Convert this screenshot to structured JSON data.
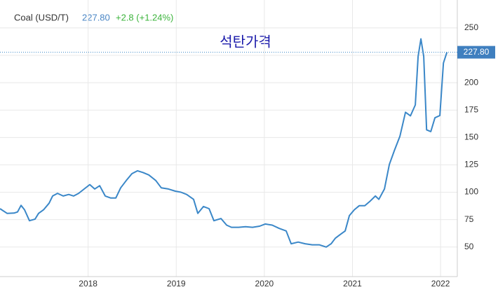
{
  "header": {
    "name": "Coal (USD/T)",
    "price": "227.80",
    "change": "+2.8 (+1.24%)"
  },
  "chart_data": {
    "type": "line",
    "title": "석탄가격",
    "x": [
      2017.0,
      2017.08,
      2017.159,
      2017.199,
      2017.239,
      2017.279,
      2017.334,
      2017.398,
      2017.438,
      2017.494,
      2017.557,
      2017.597,
      2017.653,
      2017.717,
      2017.78,
      2017.836,
      2017.892,
      2017.955,
      2018.019,
      2018.075,
      2018.131,
      2018.194,
      2018.258,
      2018.314,
      2018.369,
      2018.433,
      2018.497,
      2018.561,
      2018.624,
      2018.688,
      2018.768,
      2018.831,
      2018.911,
      2018.99,
      2019.054,
      2019.118,
      2019.197,
      2019.245,
      2019.309,
      2019.373,
      2019.428,
      2019.508,
      2019.572,
      2019.627,
      2019.707,
      2019.787,
      2019.866,
      2019.946,
      2020.01,
      2020.089,
      2020.169,
      2020.248,
      2020.304,
      2020.384,
      2020.463,
      2020.543,
      2020.623,
      2020.702,
      2020.758,
      2020.806,
      2020.862,
      2020.917,
      2020.965,
      2021.021,
      2021.076,
      2021.14,
      2021.196,
      2021.26,
      2021.299,
      2021.363,
      2021.419,
      2021.475,
      2021.538,
      2021.602,
      2021.658,
      2021.713,
      2021.745,
      2021.777,
      2021.809,
      2021.841,
      2021.889,
      2021.936,
      2021.992,
      2022.032,
      2022.072
    ],
    "series": [
      {
        "name": "Coal (USD/T)",
        "color": "#3a87c8",
        "values": [
          85,
          80.7,
          81,
          82,
          88,
          84,
          74,
          75.5,
          80.7,
          84,
          90,
          96.6,
          99,
          96.6,
          98,
          96.6,
          99,
          103,
          107,
          103,
          106,
          96.6,
          94.7,
          94.7,
          104,
          110.7,
          117,
          119.6,
          118,
          115.8,
          110.7,
          104,
          103,
          101,
          100,
          98,
          93.5,
          80.7,
          87,
          85,
          74,
          76,
          70,
          68,
          68,
          68.5,
          68,
          69,
          71,
          70,
          67,
          64.7,
          53,
          54.5,
          53,
          52,
          52,
          50,
          53,
          58,
          61.5,
          64.7,
          78.7,
          84,
          87.7,
          87.7,
          91.5,
          96.6,
          93.5,
          103,
          125.4,
          138,
          151,
          173,
          169.8,
          179.7,
          224,
          240,
          224,
          157,
          155.4,
          168,
          170,
          218,
          227.8
        ]
      }
    ],
    "xlim": [
      2017,
      2022.19
    ],
    "xticks": [
      2018,
      2019,
      2020,
      2021,
      2022
    ],
    "ylim": [
      23,
      275.5
    ],
    "yticks": [
      50,
      75,
      100,
      125,
      150,
      175,
      200,
      225,
      250
    ],
    "grid": true
  }
}
